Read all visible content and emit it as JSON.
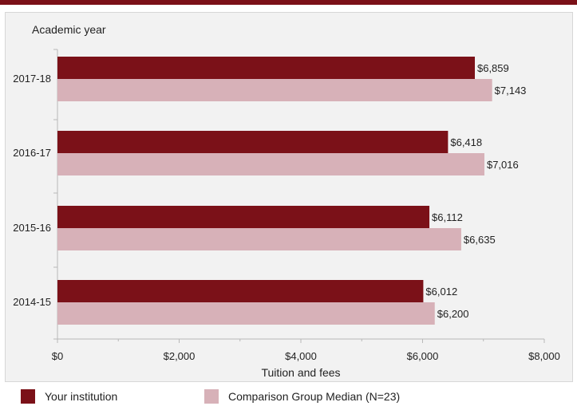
{
  "chart_data": {
    "type": "bar",
    "orientation": "horizontal",
    "title": "",
    "ylabel": "Academic year",
    "xlabel": "Tuition and fees",
    "categories": [
      "2017-18",
      "2016-17",
      "2015-16",
      "2014-15"
    ],
    "series": [
      {
        "name": "Your institution",
        "values": [
          6859,
          6418,
          6112,
          6012
        ],
        "labels": [
          "$6,859",
          "$6,418",
          "$6,112",
          "$6,012"
        ],
        "color": "#7b1118"
      },
      {
        "name": "Comparison Group Median (N=23)",
        "values": [
          7143,
          7016,
          6635,
          6200
        ],
        "labels": [
          "$7,143",
          "$7,016",
          "$6,635",
          "$6,200"
        ],
        "color": "#d7b1b8"
      }
    ],
    "xlim": [
      0,
      8000
    ],
    "xticks": [
      0,
      2000,
      4000,
      6000,
      8000
    ],
    "xtick_labels": [
      "$0",
      "$2,000",
      "$4,000",
      "$6,000",
      "$8,000"
    ],
    "grid": false,
    "legend_position": "bottom"
  },
  "colors": {
    "accent": "#7b1118",
    "secondary": "#d7b1b8",
    "panel": "#f2f2f2"
  }
}
